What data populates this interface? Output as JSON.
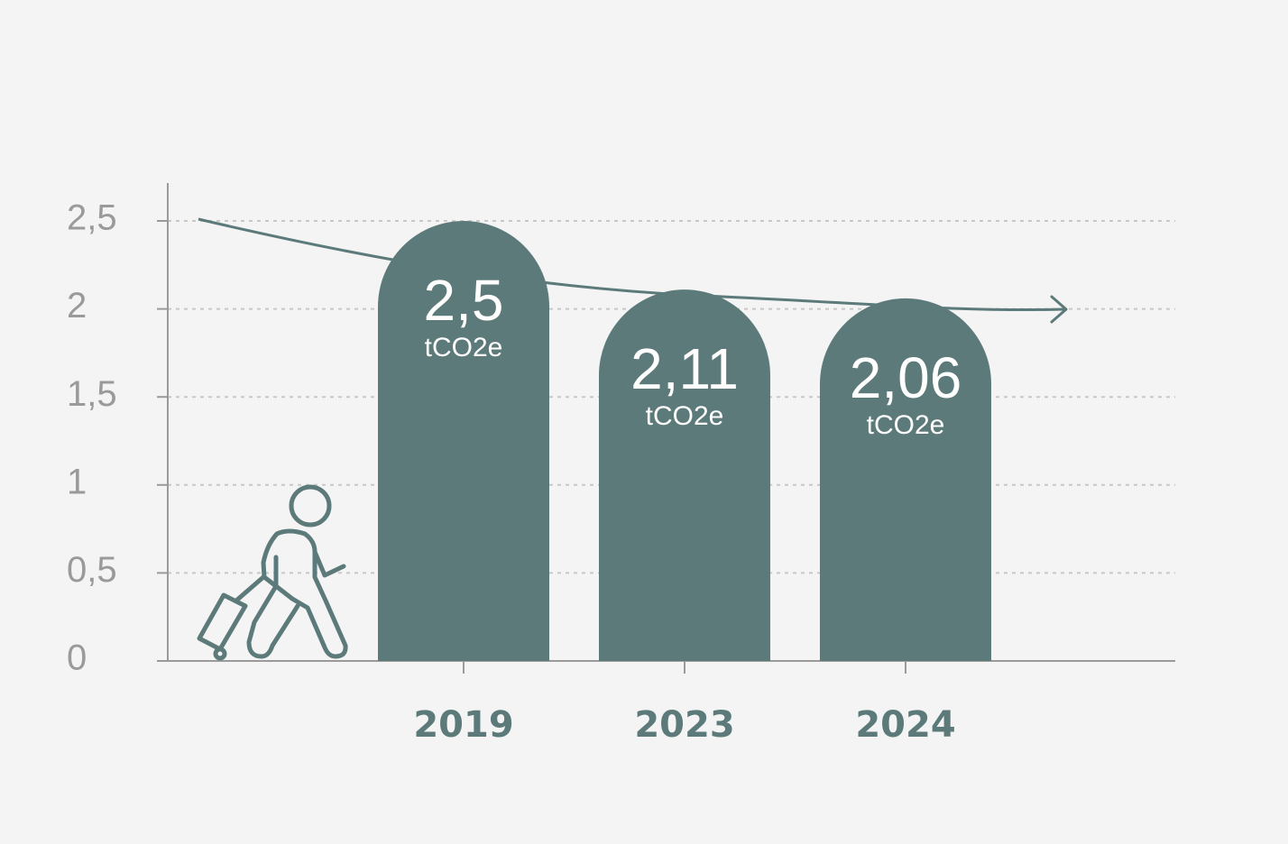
{
  "chart_data": {
    "type": "bar",
    "categories": [
      "2019",
      "2023",
      "2024"
    ],
    "values": [
      2.5,
      2.11,
      2.06
    ],
    "value_labels": [
      "2,5",
      "2,11",
      "2,06"
    ],
    "unit": "tCO2e",
    "y_ticks": [
      {
        "value": 0,
        "label": "0"
      },
      {
        "value": 0.5,
        "label": "0,5"
      },
      {
        "value": 1,
        "label": "1"
      },
      {
        "value": 1.5,
        "label": "1,5"
      },
      {
        "value": 2,
        "label": "2"
      },
      {
        "value": 2.5,
        "label": "2,5"
      }
    ],
    "ylim": [
      0,
      2.5
    ],
    "grid": true,
    "trend_arrow": true,
    "title": "",
    "xlabel": "",
    "ylabel": ""
  },
  "colors": {
    "background": "#f4f4f4",
    "bar": "#5d7a7a",
    "axis": "#9a9a9a",
    "grid": "#c8c8c8",
    "tick_text": "#9a9a9a",
    "category_text": "#5d7a7a"
  },
  "icons": {
    "traveler": "person-with-suitcase-icon"
  }
}
